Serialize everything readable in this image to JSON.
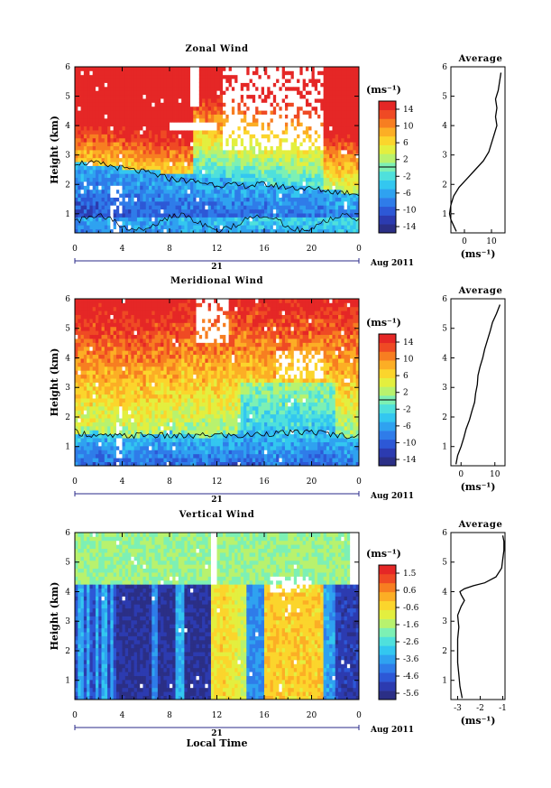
{
  "figure": {
    "date_label": "Aug 2011",
    "day_label": "21",
    "xlabel": "Local Time",
    "ylabel": "Height (km)",
    "unit_label": "(ms⁻¹)",
    "avg_title": "Average",
    "colormap": [
      "#2b2f86",
      "#2c3bb0",
      "#2d58d6",
      "#2f7ce9",
      "#2fa2f0",
      "#33c7f0",
      "#4fe0dc",
      "#7df0b4",
      "#b8f26e",
      "#e3ef3f",
      "#fbd52c",
      "#fcae25",
      "#f77e21",
      "#ef4a24",
      "#e52726"
    ]
  },
  "chart_data": [
    {
      "type": "heatmap",
      "title": "Zonal Wind",
      "xlabel": "",
      "ylabel": "Height (km)",
      "x": [
        0,
        4,
        8,
        12,
        16,
        20,
        0
      ],
      "xlim": [
        0,
        24
      ],
      "yticks": [
        1,
        2,
        3,
        4,
        5,
        6
      ],
      "ylim": [
        0.35,
        6
      ],
      "colorbar_ticks": [
        "14",
        "10",
        "6",
        "2",
        "-2",
        "-6",
        "-10",
        "-14"
      ],
      "colorbar_range": [
        -16,
        16
      ],
      "zero_contour_heights_km": [
        2.75,
        2.7,
        2.55,
        2.4,
        2.2,
        2.1,
        2.0,
        1.95,
        2.0,
        1.9,
        1.85,
        1.75,
        1.7
      ],
      "average": {
        "xlabel": "(ms⁻¹)",
        "xticks": [
          "0",
          "10"
        ],
        "xlim": [
          -5,
          15
        ],
        "yticks": [
          1,
          2,
          3,
          4,
          5,
          6
        ],
        "height_km": [
          0.4,
          0.6,
          0.8,
          1.0,
          1.3,
          1.6,
          1.9,
          2.2,
          2.5,
          2.8,
          3.1,
          3.4,
          3.7,
          4.0,
          4.3,
          4.6,
          4.9,
          5.2,
          5.5,
          5.8
        ],
        "value": [
          -3,
          -4,
          -5,
          -5.5,
          -5,
          -4,
          -2,
          1,
          4,
          7,
          9,
          10,
          11,
          12,
          11.5,
          12,
          11.5,
          12.5,
          13,
          13.5
        ]
      }
    },
    {
      "type": "heatmap",
      "title": "Meridional Wind",
      "xlabel": "",
      "ylabel": "Height (km)",
      "x": [
        0,
        4,
        8,
        12,
        16,
        20,
        0
      ],
      "xlim": [
        0,
        24
      ],
      "yticks": [
        1,
        2,
        3,
        4,
        5,
        6
      ],
      "ylim": [
        0.35,
        6
      ],
      "colorbar_ticks": [
        "14",
        "10",
        "6",
        "2",
        "-2",
        "-6",
        "-10",
        "-14"
      ],
      "colorbar_range": [
        -16,
        16
      ],
      "zero_contour_heights_km": [
        1.5,
        1.35,
        1.35,
        1.4,
        1.35,
        1.35,
        1.4,
        1.35,
        1.45,
        1.45,
        1.5,
        1.4,
        1.35
      ],
      "average": {
        "xlabel": "(ms⁻¹)",
        "xticks": [
          "0",
          "10"
        ],
        "xlim": [
          -3,
          13
        ],
        "yticks": [
          1,
          2,
          3,
          4,
          5,
          6
        ],
        "height_km": [
          0.4,
          0.7,
          1.0,
          1.3,
          1.6,
          1.9,
          2.2,
          2.5,
          2.8,
          3.1,
          3.4,
          3.7,
          4.0,
          4.3,
          4.6,
          4.9,
          5.2,
          5.5,
          5.8
        ],
        "value": [
          -1.5,
          -1,
          0,
          0.8,
          1.5,
          2.5,
          3.2,
          4,
          4.3,
          4.8,
          5,
          5.6,
          6.4,
          7,
          7.8,
          8.6,
          9.3,
          10.5,
          11.5
        ]
      }
    },
    {
      "type": "heatmap",
      "title": "Vertical Wind",
      "xlabel": "Local Time",
      "ylabel": "Height (km)",
      "x": [
        0,
        4,
        8,
        12,
        16,
        20,
        0
      ],
      "xlim": [
        0,
        24
      ],
      "yticks": [
        1,
        2,
        3,
        4,
        5,
        6
      ],
      "ylim": [
        0.35,
        6
      ],
      "colorbar_ticks": [
        "1.5",
        "0.6",
        "-0.6",
        "-1.6",
        "-2.6",
        "-3.6",
        "-4.6",
        "-5.6"
      ],
      "colorbar_range": [
        -6,
        2
      ],
      "average": {
        "xlabel": "(ms⁻¹)",
        "xticks": [
          "-3",
          "-2",
          "-1"
        ],
        "xlim": [
          -3.3,
          -0.9
        ],
        "yticks": [
          1,
          2,
          3,
          4,
          5,
          6
        ],
        "height_km": [
          0.4,
          0.8,
          1.2,
          1.6,
          2.0,
          2.4,
          2.8,
          3.2,
          3.5,
          3.7,
          3.9,
          4.0,
          4.1,
          4.2,
          4.3,
          4.5,
          4.8,
          5.1,
          5.4,
          5.7,
          5.9
        ],
        "value": [
          -2.8,
          -2.9,
          -2.95,
          -3.0,
          -3.0,
          -3.0,
          -2.95,
          -3.0,
          -2.85,
          -2.7,
          -2.85,
          -2.9,
          -2.7,
          -2.3,
          -1.8,
          -1.3,
          -1.05,
          -1.0,
          -0.95,
          -0.95,
          -1.0
        ]
      }
    }
  ]
}
